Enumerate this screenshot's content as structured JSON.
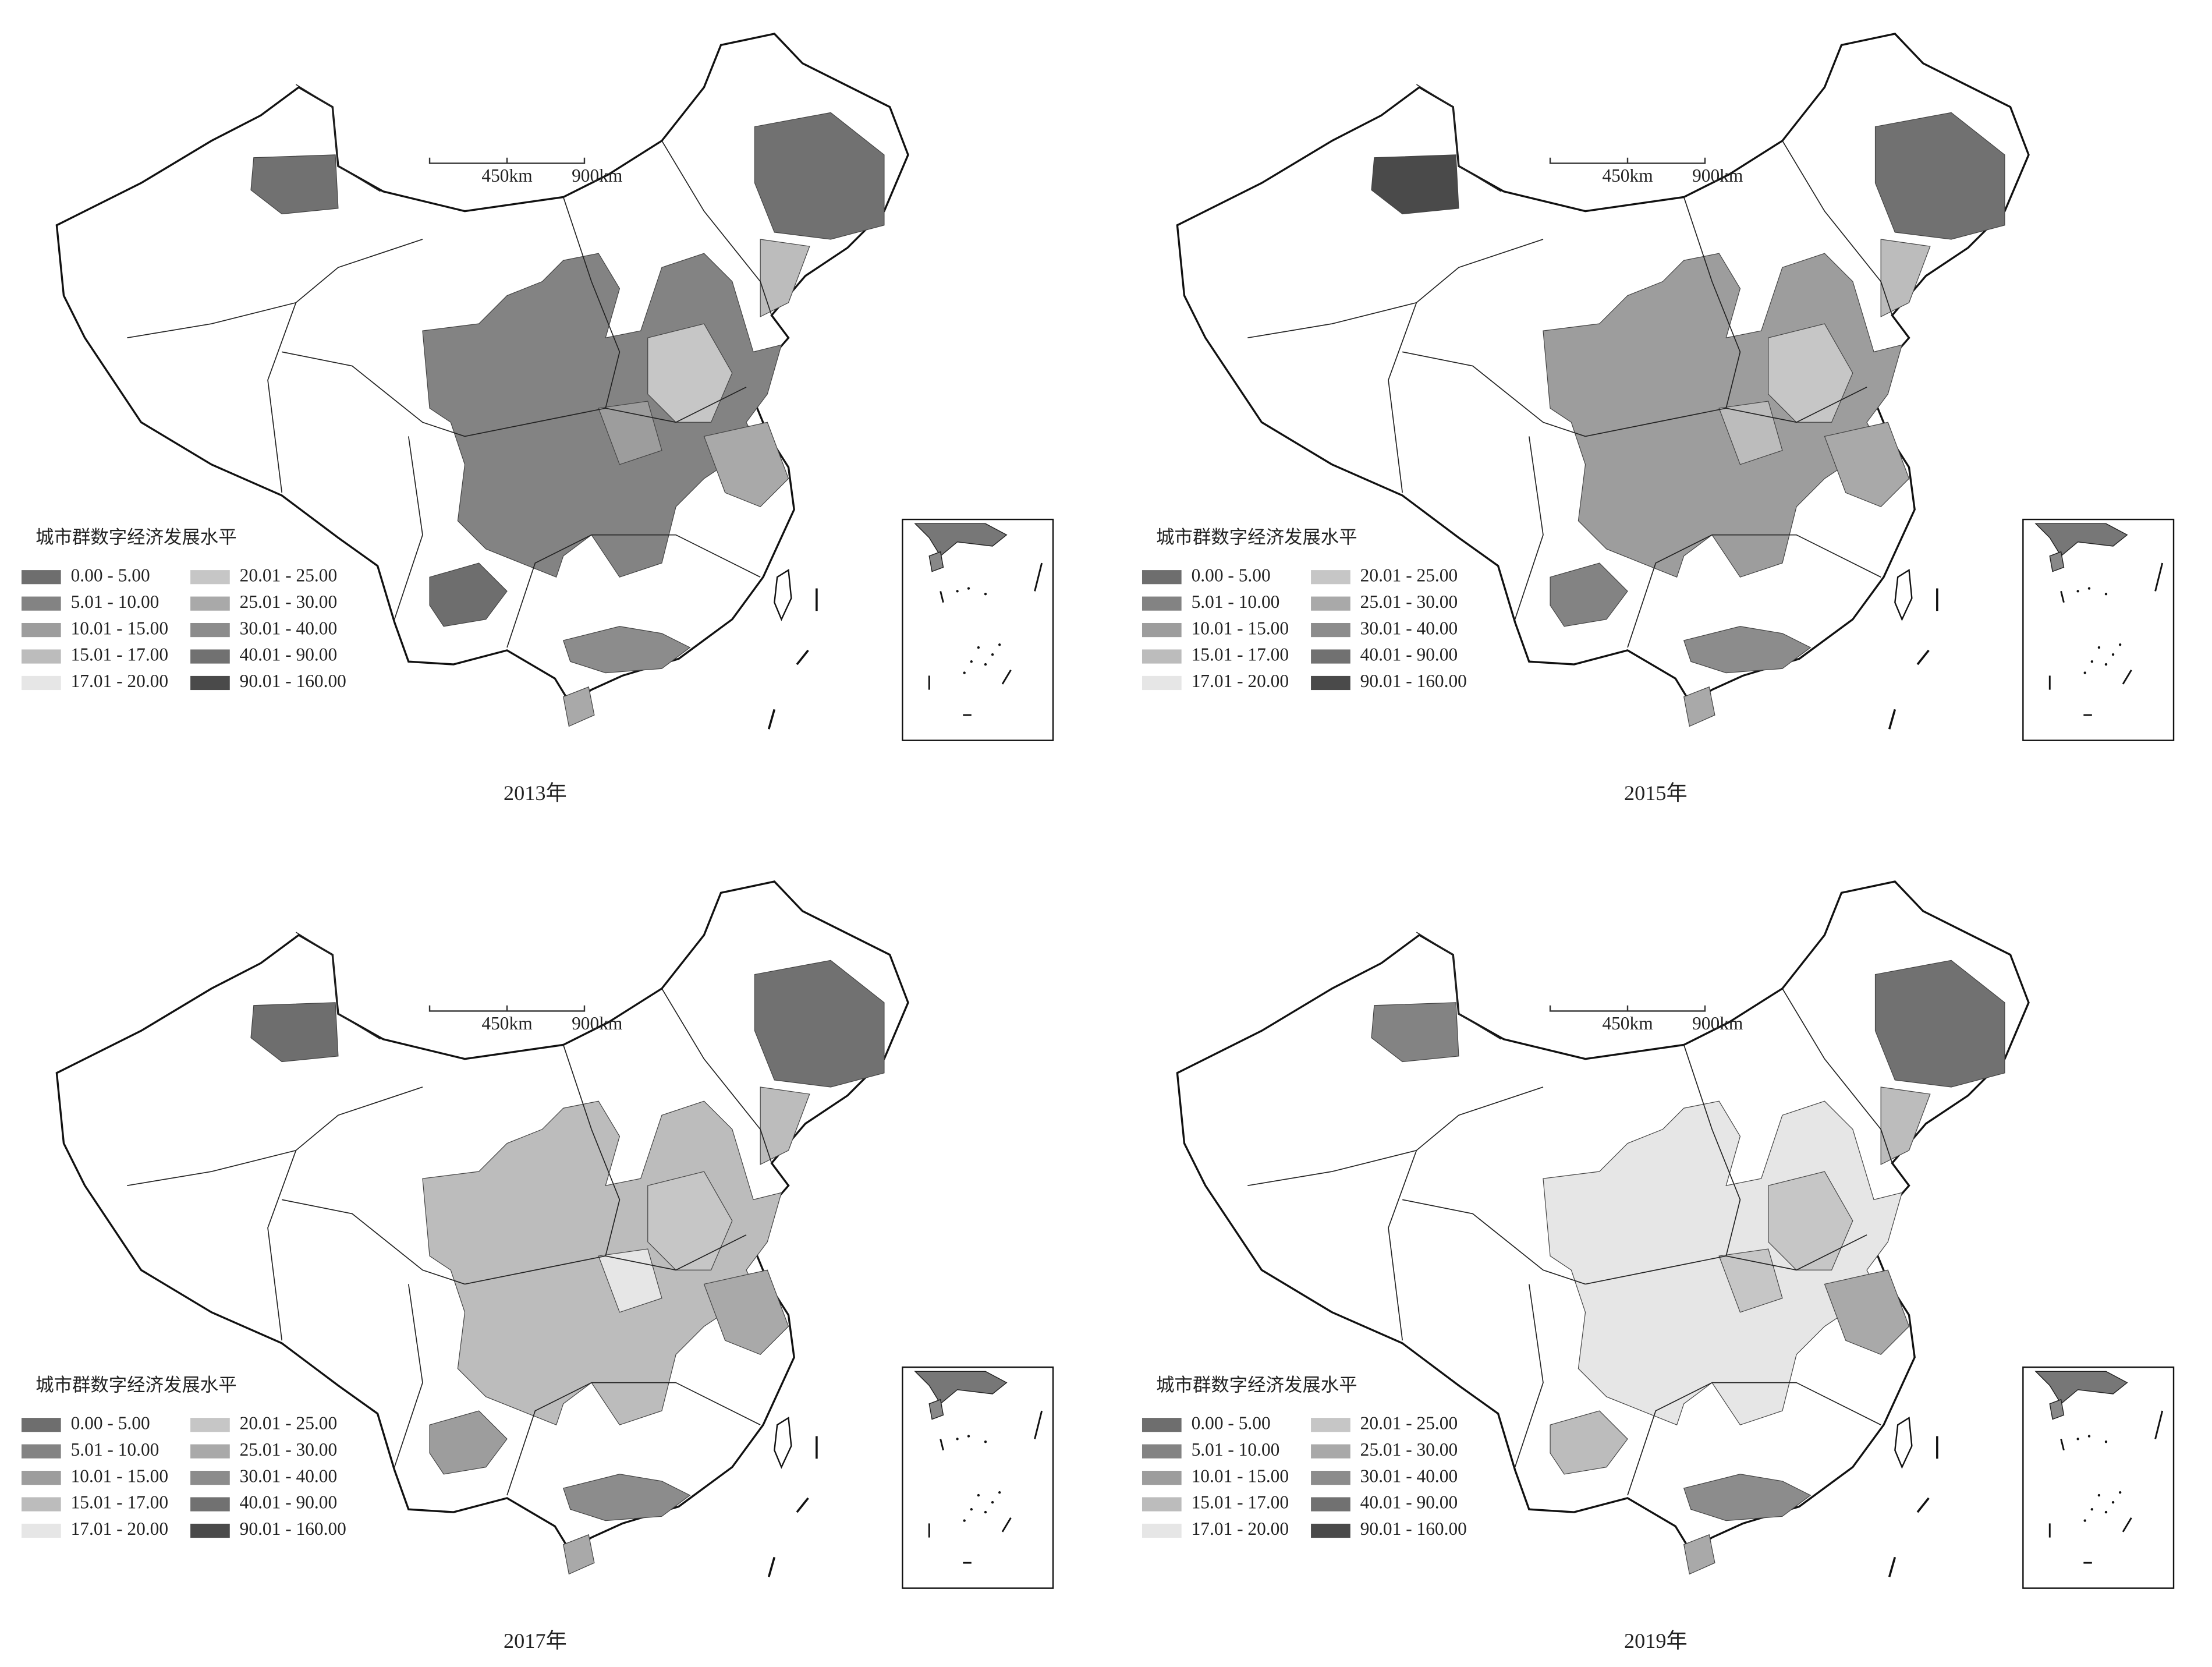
{
  "panels": [
    {
      "caption": "2013年",
      "scale_labels": [
        "450km",
        "900km"
      ],
      "legend": {
        "title": "城市群数字经济发展水平",
        "items": [
          {
            "label": "0.00 - 5.00",
            "color": "#6e6e6e"
          },
          {
            "label": "5.01 - 10.00",
            "color": "#838383"
          },
          {
            "label": "10.01 - 15.00",
            "color": "#9d9d9d"
          },
          {
            "label": "15.01 - 17.00",
            "color": "#bcbcbc"
          },
          {
            "label": "17.01 - 20.00",
            "color": "#e6e6e6"
          },
          {
            "label": "20.01 - 25.00",
            "color": "#c6c6c6"
          },
          {
            "label": "25.01 - 30.00",
            "color": "#a9a9a9"
          },
          {
            "label": "30.01 - 40.00",
            "color": "#8c8c8c"
          },
          {
            "label": "40.01 - 90.00",
            "color": "#717171"
          },
          {
            "label": "90.01 - 160.00",
            "color": "#4a4a4a"
          }
        ]
      }
    },
    {
      "caption": "2015年",
      "scale_labels": [
        "450km",
        "900km"
      ],
      "legend": {
        "title": "城市群数字经济发展水平",
        "items": [
          {
            "label": "0.00 - 5.00",
            "color": "#6e6e6e"
          },
          {
            "label": "5.01 - 10.00",
            "color": "#838383"
          },
          {
            "label": "10.01 - 15.00",
            "color": "#9d9d9d"
          },
          {
            "label": "15.01 - 17.00",
            "color": "#bcbcbc"
          },
          {
            "label": "17.01 - 20.00",
            "color": "#e6e6e6"
          },
          {
            "label": "20.01 - 25.00",
            "color": "#c6c6c6"
          },
          {
            "label": "25.01 - 30.00",
            "color": "#a9a9a9"
          },
          {
            "label": "30.01 - 40.00",
            "color": "#8c8c8c"
          },
          {
            "label": "40.01 - 90.00",
            "color": "#717171"
          },
          {
            "label": "90.01 - 160.00",
            "color": "#4a4a4a"
          }
        ]
      }
    },
    {
      "caption": "2017年",
      "scale_labels": [
        "450km",
        "900km"
      ],
      "legend": {
        "title": "城市群数字经济发展水平",
        "items": [
          {
            "label": "0.00 - 5.00",
            "color": "#6e6e6e"
          },
          {
            "label": "5.01 - 10.00",
            "color": "#838383"
          },
          {
            "label": "10.01 - 15.00",
            "color": "#9d9d9d"
          },
          {
            "label": "15.01 - 17.00",
            "color": "#bcbcbc"
          },
          {
            "label": "17.01 - 20.00",
            "color": "#e6e6e6"
          },
          {
            "label": "20.01 - 25.00",
            "color": "#c6c6c6"
          },
          {
            "label": "25.01 - 30.00",
            "color": "#a9a9a9"
          },
          {
            "label": "30.01 - 40.00",
            "color": "#8c8c8c"
          },
          {
            "label": "40.01 - 90.00",
            "color": "#717171"
          },
          {
            "label": "90.01 - 160.00",
            "color": "#4a4a4a"
          }
        ]
      }
    },
    {
      "caption": "2019年",
      "scale_labels": [
        "450km",
        "900km"
      ],
      "legend": {
        "title": "城市群数字经济发展水平",
        "items": [
          {
            "label": "0.00 - 5.00",
            "color": "#6e6e6e"
          },
          {
            "label": "5.01 - 10.00",
            "color": "#838383"
          },
          {
            "label": "10.01 - 15.00",
            "color": "#9d9d9d"
          },
          {
            "label": "15.01 - 17.00",
            "color": "#bcbcbc"
          },
          {
            "label": "17.01 - 20.00",
            "color": "#e6e6e6"
          },
          {
            "label": "20.01 - 25.00",
            "color": "#c6c6c6"
          },
          {
            "label": "25.01 - 30.00",
            "color": "#a9a9a9"
          },
          {
            "label": "30.01 - 40.00",
            "color": "#8c8c8c"
          },
          {
            "label": "40.01 - 90.00",
            "color": "#717171"
          },
          {
            "label": "90.01 - 160.00",
            "color": "#4a4a4a"
          }
        ]
      }
    }
  ]
}
